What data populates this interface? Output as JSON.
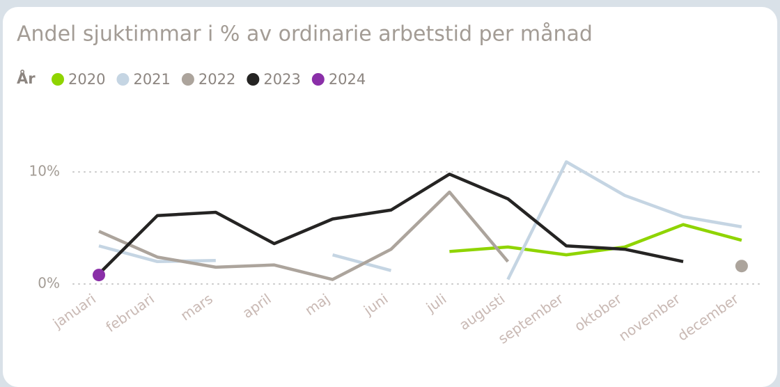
{
  "chart_data": {
    "type": "line",
    "title": "Andel sjuktimmar i % av ordinarie arbetstid per månad",
    "legend_title": "År",
    "categories": [
      "januari",
      "februari",
      "mars",
      "april",
      "maj",
      "juni",
      "juli",
      "augusti",
      "september",
      "oktober",
      "november",
      "december"
    ],
    "series": [
      {
        "name": "2020",
        "color": "#8fd400",
        "values": [
          null,
          null,
          null,
          null,
          null,
          null,
          2.9,
          3.3,
          2.6,
          3.3,
          5.3,
          3.9
        ]
      },
      {
        "name": "2021",
        "color": "#c5d5e3",
        "values": [
          3.4,
          2.0,
          2.1,
          null,
          2.6,
          1.2,
          null,
          0.4,
          10.9,
          7.9,
          6.0,
          5.1
        ]
      },
      {
        "name": "2022",
        "color": "#aca49c",
        "values": [
          4.7,
          2.4,
          1.5,
          1.7,
          0.4,
          3.1,
          8.2,
          2.0,
          null,
          null,
          null,
          1.6
        ]
      },
      {
        "name": "2023",
        "color": "#252423",
        "values": [
          0.9,
          6.1,
          6.4,
          3.6,
          5.8,
          6.6,
          9.8,
          7.6,
          3.4,
          3.1,
          2.0,
          null
        ]
      },
      {
        "name": "2024",
        "color": "#8a2fa8",
        "values": [
          0.8,
          null,
          null,
          null,
          null,
          null,
          null,
          null,
          null,
          null,
          null,
          null
        ]
      }
    ],
    "ylim": [
      0,
      12
    ],
    "yticks": [
      {
        "value": 0,
        "label": "0%"
      },
      {
        "value": 10,
        "label": "10%"
      }
    ],
    "grid": true
  }
}
